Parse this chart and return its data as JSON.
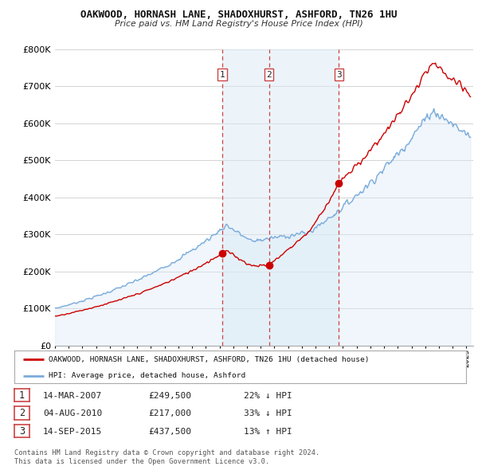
{
  "title": "OAKWOOD, HORNASH LANE, SHADOXHURST, ASHFORD, TN26 1HU",
  "subtitle": "Price paid vs. HM Land Registry's House Price Index (HPI)",
  "legend_property": "OAKWOOD, HORNASH LANE, SHADOXHURST, ASHFORD, TN26 1HU (detached house)",
  "legend_hpi": "HPI: Average price, detached house, Ashford",
  "footer1": "Contains HM Land Registry data © Crown copyright and database right 2024.",
  "footer2": "This data is licensed under the Open Government Licence v3.0.",
  "transactions": [
    {
      "num": 1,
      "date": "14-MAR-2007",
      "price": 249500,
      "pct": "22%",
      "dir": "↓",
      "rel": "HPI",
      "year": 2007.2
    },
    {
      "num": 2,
      "date": "04-AUG-2010",
      "price": 217000,
      "pct": "33%",
      "dir": "↓",
      "rel": "HPI",
      "year": 2010.6
    },
    {
      "num": 3,
      "date": "14-SEP-2015",
      "price": 437500,
      "pct": "13%",
      "dir": "↑",
      "rel": "HPI",
      "year": 2015.7
    }
  ],
  "property_color": "#cc0000",
  "hpi_color": "#7aabdb",
  "hpi_fill_color": "#daeaf7",
  "dashed_line_color": "#cc4444",
  "ylim": [
    0,
    800000
  ],
  "yticks": [
    0,
    100000,
    200000,
    300000,
    400000,
    500000,
    600000,
    700000,
    800000
  ],
  "xmin": 1995,
  "xmax": 2025.5,
  "bg_color": "#ffffff",
  "grid_color": "#cccccc"
}
